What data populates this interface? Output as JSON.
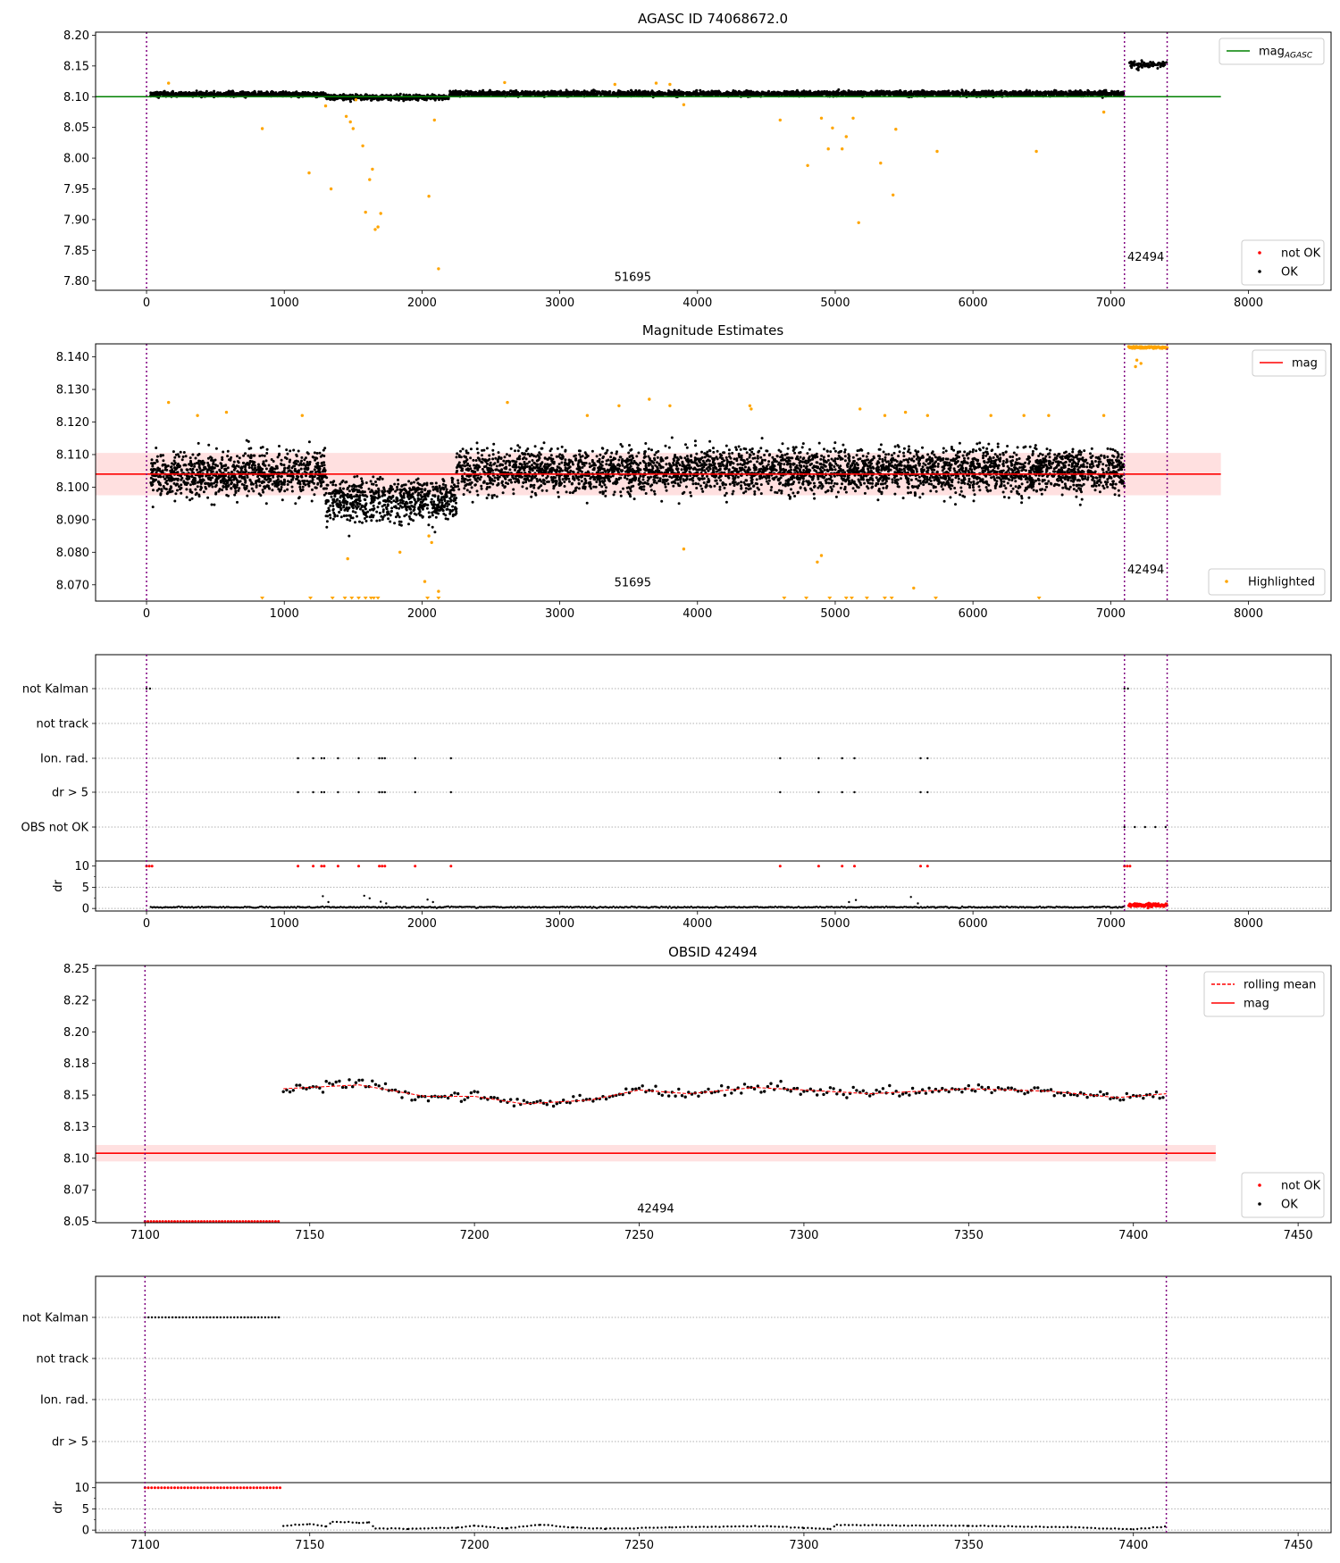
{
  "figure": {
    "panel1": {
      "title": "AGASC ID 74068672.0",
      "xlim": [
        -370,
        8600
      ],
      "ylim": [
        7.785,
        8.205
      ],
      "xticks": [
        0,
        1000,
        2000,
        3000,
        4000,
        5000,
        6000,
        7000,
        8000
      ],
      "yticks": [
        7.8,
        7.85,
        7.9,
        7.95,
        8.0,
        8.05,
        8.1,
        8.15,
        8.2
      ],
      "legend_top": [
        {
          "label": "mag",
          "subscript": "AGASC",
          "color": "#008000",
          "kind": "line"
        }
      ],
      "legend_bottom": [
        {
          "label": "not OK",
          "color": "#ff0000",
          "kind": "dot"
        },
        {
          "label": "OK",
          "color": "#000000",
          "kind": "dot"
        }
      ],
      "obs_annotations": [
        {
          "text": "51695",
          "x": 3530,
          "y": 7.8
        },
        {
          "text": "42494",
          "x": 7255,
          "y": 7.833
        }
      ]
    },
    "panel2": {
      "title": "Magnitude Estimates",
      "xlim": [
        -370,
        8600
      ],
      "ylim": [
        8.065,
        8.144
      ],
      "xticks": [
        0,
        1000,
        2000,
        3000,
        4000,
        5000,
        6000,
        7000,
        8000
      ],
      "yticks": [
        8.07,
        8.08,
        8.09,
        8.1,
        8.11,
        8.12,
        8.13,
        8.14
      ],
      "legend_top": [
        {
          "label": "mag",
          "color": "#ff0000",
          "kind": "line"
        }
      ],
      "legend_bottom": [
        {
          "label": "Highlighted",
          "color": "#ffa500",
          "kind": "dot"
        }
      ],
      "obs_annotations": [
        {
          "text": "51695",
          "x": 3530,
          "y": 8.0695
        },
        {
          "text": "42494",
          "x": 7255,
          "y": 8.0735
        }
      ]
    },
    "flags1": {
      "xlim": [
        -370,
        8600
      ],
      "xticks": [
        0,
        1000,
        2000,
        3000,
        4000,
        5000,
        6000,
        7000,
        8000
      ],
      "flag_labels": [
        "not Kalman",
        "not track",
        "Ion. rad.",
        "dr > 5",
        "OBS not OK"
      ],
      "dr_label": "dr",
      "dr_yticks": [
        0,
        5,
        10
      ]
    },
    "panel3": {
      "title": "OBSID 42494",
      "xlim": [
        7085,
        7460
      ],
      "ylim": [
        8.049,
        8.2525
      ],
      "xticks": [
        7100,
        7150,
        7200,
        7250,
        7300,
        7350,
        7400,
        7450
      ],
      "yticks": [
        8.05,
        8.075,
        8.1,
        8.125,
        8.15,
        8.175,
        8.2,
        8.225,
        8.25
      ],
      "legend_top": [
        {
          "label": "rolling mean",
          "color": "#ff0000",
          "kind": "dashed"
        },
        {
          "label": "mag",
          "color": "#ff0000",
          "kind": "line"
        }
      ],
      "legend_bottom": [
        {
          "label": "not OK",
          "color": "#ff0000",
          "kind": "dot"
        },
        {
          "label": "OK",
          "color": "#000000",
          "kind": "dot"
        }
      ],
      "obs_annotations": [
        {
          "text": "42494",
          "x": 7255,
          "y": 8.057
        }
      ]
    },
    "flags2": {
      "xlim": [
        7085,
        7460
      ],
      "xticks": [
        7100,
        7150,
        7200,
        7250,
        7300,
        7350,
        7400,
        7450
      ],
      "flag_labels": [
        "not Kalman",
        "not track",
        "Ion. rad.",
        "dr > 5"
      ],
      "dr_label": "dr",
      "dr_yticks": [
        0,
        5,
        10
      ]
    }
  },
  "chart_data": [
    {
      "type": "scatter",
      "title": "AGASC ID 74068672.0",
      "xlabel": "",
      "ylabel": "",
      "xlim": [
        -370,
        8600
      ],
      "ylim": [
        7.785,
        8.205
      ],
      "grid": false,
      "legend": "top-right and bottom-right",
      "reference_lines": [
        {
          "name": "mag_AGASC",
          "y": 8.1,
          "x_range": [
            -370,
            7800
          ]
        }
      ],
      "observation_boundaries": [
        0,
        7100,
        7410
      ],
      "observations": [
        {
          "obsid": "51695",
          "x_range": [
            0,
            7100
          ]
        },
        {
          "obsid": "42494",
          "x_range": [
            7100,
            7410
          ]
        }
      ],
      "series": [
        {
          "name": "OK",
          "color": "#000000",
          "x_range": [
            30,
            7100
          ],
          "y_mean": 8.104,
          "y_spread": 0.006,
          "segments": [
            {
              "x_range": [
                30,
                1300
              ],
              "y_mean": 8.104
            },
            {
              "x_range": [
                1300,
                2200
              ],
              "y_mean": 8.099
            },
            {
              "x_range": [
                2200,
                7100
              ],
              "y_mean": 8.105
            }
          ]
        },
        {
          "name": "OK",
          "color": "#000000",
          "x_range": [
            7130,
            7410
          ],
          "y_mean": 8.152,
          "y_spread": 0.007
        },
        {
          "name": "highlighted",
          "color": "#ffa500",
          "x": [
            160,
            840,
            1180,
            1340,
            1450,
            1480,
            1500,
            1570,
            1590,
            1620,
            1640,
            1660,
            1680,
            1700,
            2050,
            2120,
            1300,
            1520,
            2090,
            2600,
            3400,
            3700,
            3800,
            3900,
            4600,
            4800,
            4900,
            4950,
            4980,
            5050,
            5080,
            5130,
            5170,
            5330,
            5420,
            5440,
            5740,
            6460,
            6950
          ],
          "y": [
            8.122,
            8.048,
            7.976,
            7.95,
            8.068,
            8.059,
            8.048,
            8.02,
            7.912,
            7.965,
            7.982,
            7.884,
            7.888,
            7.91,
            7.938,
            7.82,
            8.085,
            8.095,
            8.062,
            8.123,
            8.12,
            8.122,
            8.12,
            8.087,
            8.062,
            7.988,
            8.065,
            8.015,
            8.049,
            8.015,
            8.035,
            8.065,
            7.895,
            7.992,
            7.94,
            8.047,
            8.011,
            8.011,
            8.075
          ]
        }
      ]
    },
    {
      "type": "scatter",
      "title": "Magnitude Estimates",
      "xlabel": "",
      "ylabel": "",
      "xlim": [
        -370,
        8600
      ],
      "ylim": [
        8.065,
        8.144
      ],
      "grid": false,
      "reference_lines": [
        {
          "name": "mag",
          "y": 8.104,
          "band": [
            8.0975,
            8.1105
          ],
          "x_range": [
            -370,
            7800
          ]
        }
      ],
      "observation_boundaries": [
        0,
        7100,
        7410
      ],
      "series": [
        {
          "name": "OK",
          "color": "#000000",
          "x_range": [
            30,
            7100
          ],
          "y_mean": 8.104,
          "y_spread": 0.0075,
          "segments": [
            {
              "x_range": [
                30,
                1300
              ],
              "y_mean": 8.104
            },
            {
              "x_range": [
                1300,
                2250
              ],
              "y_mean": 8.096
            },
            {
              "x_range": [
                2250,
                7100
              ],
              "y_mean": 8.105
            }
          ]
        },
        {
          "name": "Highlighted",
          "color": "#ffa500",
          "x": [
            160,
            370,
            580,
            1130,
            1460,
            1840,
            2020,
            2050,
            2070,
            2120,
            2620,
            3200,
            3430,
            3650,
            3800,
            3900,
            4380,
            4390,
            4870,
            4900,
            5180,
            5360,
            5510,
            5570,
            5670,
            6130,
            6370,
            6550,
            6950
          ],
          "y": [
            8.126,
            8.122,
            8.123,
            8.122,
            8.078,
            8.08,
            8.071,
            8.085,
            8.083,
            8.068,
            8.126,
            8.122,
            8.125,
            8.127,
            8.125,
            8.081,
            8.125,
            8.124,
            8.077,
            8.079,
            8.124,
            8.122,
            8.123,
            8.069,
            8.122,
            8.122,
            8.122,
            8.122,
            8.122
          ]
        },
        {
          "name": "Highlighted (clipped at lower edge)",
          "color": "#ffa500",
          "x": [
            840,
            1190,
            1350,
            1440,
            1490,
            1540,
            1590,
            1630,
            1650,
            1680,
            2040,
            2120,
            4630,
            4790,
            4960,
            5080,
            5120,
            5230,
            5360,
            5410,
            5730,
            6480
          ],
          "y": [
            8.0655,
            8.0655,
            8.0655,
            8.0655,
            8.0655,
            8.0655,
            8.0655,
            8.0655,
            8.0655,
            8.0655,
            8.0655,
            8.0655,
            8.0655,
            8.0655,
            8.0655,
            8.0655,
            8.0655,
            8.0655,
            8.0655,
            8.0655,
            8.0655,
            8.0655
          ]
        },
        {
          "name": "Highlighted (obsid 42494, clipped at upper edge)",
          "color": "#ffa500",
          "x_range": [
            7130,
            7410
          ],
          "y": 8.1425,
          "extra_points": {
            "x": [
              7180,
              7190,
              7220
            ],
            "y": [
              8.137,
              8.139,
              8.138
            ]
          }
        }
      ]
    },
    {
      "type": "scatter",
      "title": "",
      "xlim": [
        -370,
        8600
      ],
      "grid": true,
      "categories": [
        "not Kalman",
        "not track",
        "Ion. rad.",
        "dr > 5",
        "OBS not OK"
      ],
      "flags": {
        "not Kalman": {
          "x_ranges": [
            [
              0,
              40
            ],
            [
              7100,
              7140
            ]
          ]
        },
        "not track": {
          "x": []
        },
        "Ion. rad.": {
          "x": [
            1100,
            1210,
            1270,
            1290,
            1390,
            1540,
            1690,
            1710,
            1730,
            1950,
            2210,
            4600,
            4880,
            5050,
            5140,
            5620,
            5670
          ]
        },
        "dr > 5": {
          "x": [
            1100,
            1210,
            1270,
            1290,
            1390,
            1540,
            1690,
            1710,
            1730,
            1950,
            2210,
            4600,
            4880,
            5050,
            5140,
            5620,
            5670
          ]
        },
        "OBS not OK": {
          "x_ranges": [
            [
              7100,
              7410
            ]
          ]
        }
      },
      "dr": {
        "ylabel": "dr",
        "ylim": [
          -0.6,
          11.2
        ],
        "yticks": [
          0,
          5,
          10
        ],
        "clipped_red_x": [
          0,
          20,
          40,
          1100,
          1210,
          1270,
          1290,
          1390,
          1540,
          1690,
          1710,
          1730,
          1950,
          2210,
          4600,
          4880,
          5050,
          5140,
          5620,
          5670,
          7100,
          7120,
          7140
        ],
        "clipped_y": 10,
        "black_baseline": {
          "x_range": [
            30,
            7100
          ],
          "y": 0.3
        },
        "red_points": {
          "x_range": [
            7130,
            7410
          ],
          "y_mean": 0.8
        },
        "spikes": {
          "x": [
            1280,
            1320,
            1580,
            1620,
            1700,
            1740,
            2040,
            2080,
            5100,
            5150,
            5550,
            5600
          ],
          "y": [
            2.9,
            1.5,
            3.0,
            2.4,
            1.6,
            1.2,
            2.1,
            1.5,
            1.5,
            2.0,
            2.7,
            1.2
          ]
        }
      }
    },
    {
      "type": "scatter",
      "title": "OBSID 42494",
      "xlabel": "",
      "ylabel": "",
      "xlim": [
        7085,
        7460
      ],
      "ylim": [
        8.049,
        8.2525
      ],
      "grid": false,
      "reference_lines": [
        {
          "name": "mag",
          "y": 8.104,
          "band": [
            8.0975,
            8.1105
          ],
          "x_range": [
            7085,
            7425
          ]
        }
      ],
      "observation_boundaries": [
        7100,
        7410
      ],
      "series": [
        {
          "name": "not OK",
          "color": "#ff0000",
          "x_range": [
            7100,
            7141
          ],
          "y": 8.05
        },
        {
          "name": "OK",
          "color": "#000000",
          "x_range": [
            7142,
            7410
          ],
          "y_spread": 0.006,
          "trend": {
            "x": [
              7142,
              7165,
              7185,
              7200,
              7215,
              7235,
              7250,
              7265,
              7285,
              7300,
              7320,
              7350,
              7375,
              7395,
              7410
            ],
            "y": [
              8.155,
              8.159,
              8.148,
              8.15,
              8.143,
              8.146,
              8.155,
              8.151,
              8.157,
              8.154,
              8.151,
              8.155,
              8.153,
              8.147,
              8.151
            ]
          }
        },
        {
          "name": "rolling mean",
          "color": "#ff0000",
          "style": "dashed",
          "x": [
            7142,
            7165,
            7185,
            7200,
            7215,
            7235,
            7250,
            7265,
            7285,
            7300,
            7320,
            7350,
            7375,
            7395,
            7410
          ],
          "y": [
            8.155,
            8.158,
            8.149,
            8.149,
            8.143,
            8.146,
            8.154,
            8.151,
            8.156,
            8.154,
            8.151,
            8.155,
            8.153,
            8.148,
            8.151
          ]
        }
      ]
    },
    {
      "type": "scatter",
      "title": "",
      "xlim": [
        7085,
        7460
      ],
      "grid": true,
      "categories": [
        "not Kalman",
        "not track",
        "Ion. rad.",
        "dr > 5"
      ],
      "flags": {
        "not Kalman": {
          "x_range": [
            7100,
            7141
          ]
        },
        "not track": {
          "x": []
        },
        "Ion. rad.": {
          "x": []
        },
        "dr > 5": {
          "x": []
        }
      },
      "dr": {
        "ylabel": "dr",
        "ylim": [
          -0.6,
          11.2
        ],
        "yticks": [
          0,
          5,
          10
        ],
        "clipped_red": {
          "x_range": [
            7100,
            7141
          ],
          "y": 10
        },
        "black_points": {
          "x": [
            7142,
            7150,
            7155,
            7157,
            7165,
            7168,
            7170,
            7180,
            7195,
            7200,
            7210,
            7220,
            7230,
            7240,
            7260,
            7290,
            7300,
            7308,
            7310,
            7350,
            7380,
            7400,
            7410
          ],
          "y": [
            1.0,
            1.4,
            0.9,
            2.0,
            1.7,
            1.8,
            0.4,
            0.3,
            0.6,
            1.0,
            0.4,
            1.3,
            0.6,
            0.3,
            0.7,
            0.9,
            0.5,
            0.2,
            1.2,
            1.0,
            0.7,
            0.2,
            0.8
          ]
        }
      }
    }
  ]
}
